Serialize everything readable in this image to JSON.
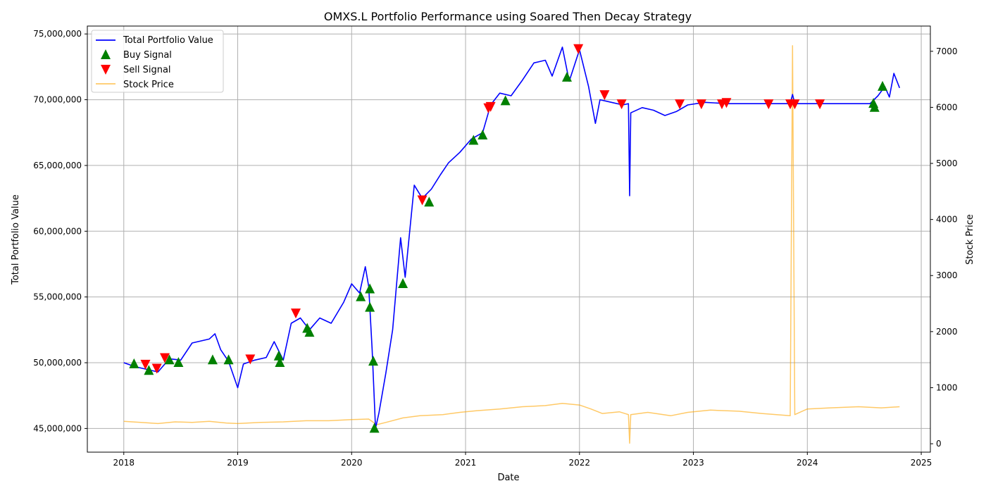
{
  "chart_data": {
    "type": "line",
    "title": "OMXS.L Portfolio Performance using Soared Then Decay Strategy",
    "xlabel": "Date",
    "ylabel_left": "Total Portfolio Value",
    "ylabel_right": "Stock Price",
    "x_range": [
      2017.68,
      2025.08
    ],
    "y_left_range": [
      43200000,
      75600000
    ],
    "y_right_range": [
      -150,
      7450
    ],
    "x_ticks": [
      {
        "value": 2018,
        "label": "2018"
      },
      {
        "value": 2019,
        "label": "2019"
      },
      {
        "value": 2020,
        "label": "2020"
      },
      {
        "value": 2021,
        "label": "2021"
      },
      {
        "value": 2022,
        "label": "2022"
      },
      {
        "value": 2023,
        "label": "2023"
      },
      {
        "value": 2024,
        "label": "2024"
      },
      {
        "value": 2025,
        "label": "2025"
      }
    ],
    "y_left_ticks": [
      {
        "value": 45000000,
        "label": "45,000,000"
      },
      {
        "value": 50000000,
        "label": "50,000,000"
      },
      {
        "value": 55000000,
        "label": "55,000,000"
      },
      {
        "value": 60000000,
        "label": "60,000,000"
      },
      {
        "value": 65000000,
        "label": "65,000,000"
      },
      {
        "value": 70000000,
        "label": "70,000,000"
      },
      {
        "value": 75000000,
        "label": "75,000,000"
      }
    ],
    "y_right_ticks": [
      {
        "value": 0,
        "label": "0"
      },
      {
        "value": 1000,
        "label": "1000"
      },
      {
        "value": 2000,
        "label": "2000"
      },
      {
        "value": 3000,
        "label": "3000"
      },
      {
        "value": 4000,
        "label": "4000"
      },
      {
        "value": 5000,
        "label": "5000"
      },
      {
        "value": 6000,
        "label": "6000"
      },
      {
        "value": 7000,
        "label": "7000"
      }
    ],
    "grid": true,
    "legend_position": "upper-left",
    "series": [
      {
        "name": "Total Portfolio Value",
        "axis": "left",
        "color": "#0000ff",
        "style": "line",
        "points": [
          [
            2018.0,
            50000000
          ],
          [
            2018.1,
            49700000
          ],
          [
            2018.2,
            49500000
          ],
          [
            2018.3,
            49300000
          ],
          [
            2018.4,
            50300000
          ],
          [
            2018.5,
            50200000
          ],
          [
            2018.6,
            51500000
          ],
          [
            2018.75,
            51800000
          ],
          [
            2018.8,
            52200000
          ],
          [
            2018.85,
            51000000
          ],
          [
            2018.92,
            50100000
          ],
          [
            2019.0,
            48100000
          ],
          [
            2019.05,
            49900000
          ],
          [
            2019.15,
            50200000
          ],
          [
            2019.25,
            50400000
          ],
          [
            2019.32,
            51600000
          ],
          [
            2019.4,
            50200000
          ],
          [
            2019.47,
            53000000
          ],
          [
            2019.55,
            53400000
          ],
          [
            2019.63,
            52500000
          ],
          [
            2019.72,
            53400000
          ],
          [
            2019.82,
            53000000
          ],
          [
            2019.93,
            54600000
          ],
          [
            2020.0,
            56000000
          ],
          [
            2020.07,
            55300000
          ],
          [
            2020.12,
            57300000
          ],
          [
            2020.15,
            55800000
          ],
          [
            2020.18,
            51000000
          ],
          [
            2020.21,
            45000000
          ],
          [
            2020.24,
            46200000
          ],
          [
            2020.3,
            49200000
          ],
          [
            2020.36,
            52500000
          ],
          [
            2020.43,
            59500000
          ],
          [
            2020.47,
            56500000
          ],
          [
            2020.55,
            63500000
          ],
          [
            2020.62,
            62500000
          ],
          [
            2020.7,
            63200000
          ],
          [
            2020.78,
            64300000
          ],
          [
            2020.85,
            65200000
          ],
          [
            2020.95,
            66000000
          ],
          [
            2021.05,
            67000000
          ],
          [
            2021.15,
            67500000
          ],
          [
            2021.22,
            69600000
          ],
          [
            2021.3,
            70500000
          ],
          [
            2021.4,
            70300000
          ],
          [
            2021.5,
            71500000
          ],
          [
            2021.6,
            72800000
          ],
          [
            2021.7,
            73000000
          ],
          [
            2021.76,
            71800000
          ],
          [
            2021.85,
            74000000
          ],
          [
            2021.91,
            71400000
          ],
          [
            2022.0,
            73800000
          ],
          [
            2022.08,
            71000000
          ],
          [
            2022.14,
            68200000
          ],
          [
            2022.18,
            70000000
          ],
          [
            2022.28,
            69800000
          ],
          [
            2022.38,
            69600000
          ],
          [
            2022.43,
            69700000
          ],
          [
            2022.44,
            62700000
          ],
          [
            2022.45,
            69000000
          ],
          [
            2022.55,
            69400000
          ],
          [
            2022.65,
            69200000
          ],
          [
            2022.75,
            68800000
          ],
          [
            2022.85,
            69100000
          ],
          [
            2022.95,
            69600000
          ],
          [
            2023.1,
            69800000
          ],
          [
            2023.3,
            69700000
          ],
          [
            2023.6,
            69700000
          ],
          [
            2023.85,
            69700000
          ],
          [
            2023.87,
            70400000
          ],
          [
            2023.89,
            69700000
          ],
          [
            2024.2,
            69700000
          ],
          [
            2024.55,
            69700000
          ],
          [
            2024.62,
            70300000
          ],
          [
            2024.68,
            71000000
          ],
          [
            2024.72,
            70200000
          ],
          [
            2024.76,
            72000000
          ],
          [
            2024.81,
            70900000
          ]
        ]
      },
      {
        "name": "Stock Price",
        "axis": "right",
        "color": "#ffa500",
        "style": "line",
        "points": [
          [
            2018.0,
            400
          ],
          [
            2018.15,
            380
          ],
          [
            2018.3,
            360
          ],
          [
            2018.45,
            390
          ],
          [
            2018.6,
            380
          ],
          [
            2018.75,
            400
          ],
          [
            2018.9,
            370
          ],
          [
            2019.0,
            360
          ],
          [
            2019.2,
            380
          ],
          [
            2019.4,
            390
          ],
          [
            2019.6,
            410
          ],
          [
            2019.8,
            410
          ],
          [
            2020.0,
            430
          ],
          [
            2020.15,
            440
          ],
          [
            2020.22,
            340
          ],
          [
            2020.3,
            380
          ],
          [
            2020.45,
            460
          ],
          [
            2020.6,
            500
          ],
          [
            2020.8,
            520
          ],
          [
            2020.95,
            560
          ],
          [
            2021.1,
            590
          ],
          [
            2021.3,
            620
          ],
          [
            2021.5,
            660
          ],
          [
            2021.7,
            680
          ],
          [
            2021.85,
            720
          ],
          [
            2022.0,
            690
          ],
          [
            2022.1,
            620
          ],
          [
            2022.2,
            540
          ],
          [
            2022.35,
            570
          ],
          [
            2022.43,
            520
          ],
          [
            2022.44,
            10
          ],
          [
            2022.45,
            520
          ],
          [
            2022.6,
            560
          ],
          [
            2022.8,
            500
          ],
          [
            2022.95,
            560
          ],
          [
            2023.15,
            600
          ],
          [
            2023.4,
            580
          ],
          [
            2023.6,
            540
          ],
          [
            2023.85,
            500
          ],
          [
            2023.87,
            7100
          ],
          [
            2023.89,
            520
          ],
          [
            2024.0,
            620
          ],
          [
            2024.2,
            640
          ],
          [
            2024.45,
            660
          ],
          [
            2024.65,
            640
          ],
          [
            2024.81,
            660
          ]
        ]
      }
    ],
    "buy_signals": {
      "name": "Buy Signal",
      "color": "#008000",
      "points": [
        [
          2018.09,
          49900000
        ],
        [
          2018.22,
          49400000
        ],
        [
          2018.4,
          50200000
        ],
        [
          2018.48,
          50000000
        ],
        [
          2018.78,
          50200000
        ],
        [
          2018.92,
          50200000
        ],
        [
          2019.36,
          50500000
        ],
        [
          2019.37,
          50000000
        ],
        [
          2019.61,
          52600000
        ],
        [
          2019.63,
          52300000
        ],
        [
          2020.08,
          55000000
        ],
        [
          2020.16,
          55600000
        ],
        [
          2020.16,
          54200000
        ],
        [
          2020.19,
          50100000
        ],
        [
          2020.2,
          45000000
        ],
        [
          2020.45,
          56000000
        ],
        [
          2020.68,
          62200000
        ],
        [
          2021.07,
          66900000
        ],
        [
          2021.15,
          67300000
        ],
        [
          2021.35,
          69900000
        ],
        [
          2021.89,
          71700000
        ],
        [
          2024.58,
          69700000
        ],
        [
          2024.59,
          69400000
        ],
        [
          2024.66,
          71000000
        ]
      ]
    },
    "sell_signals": {
      "name": "Sell Signal",
      "color": "#ff0000",
      "points": [
        [
          2018.19,
          49900000
        ],
        [
          2018.29,
          49600000
        ],
        [
          2018.36,
          50400000
        ],
        [
          2019.11,
          50300000
        ],
        [
          2019.51,
          53800000
        ],
        [
          2020.62,
          62400000
        ],
        [
          2021.2,
          69400000
        ],
        [
          2021.22,
          69500000
        ],
        [
          2021.99,
          73900000
        ],
        [
          2022.22,
          70400000
        ],
        [
          2022.37,
          69700000
        ],
        [
          2022.88,
          69700000
        ],
        [
          2023.07,
          69700000
        ],
        [
          2023.25,
          69700000
        ],
        [
          2023.29,
          69800000
        ],
        [
          2023.66,
          69700000
        ],
        [
          2023.85,
          69700000
        ],
        [
          2023.89,
          69700000
        ],
        [
          2024.11,
          69700000
        ]
      ]
    }
  }
}
